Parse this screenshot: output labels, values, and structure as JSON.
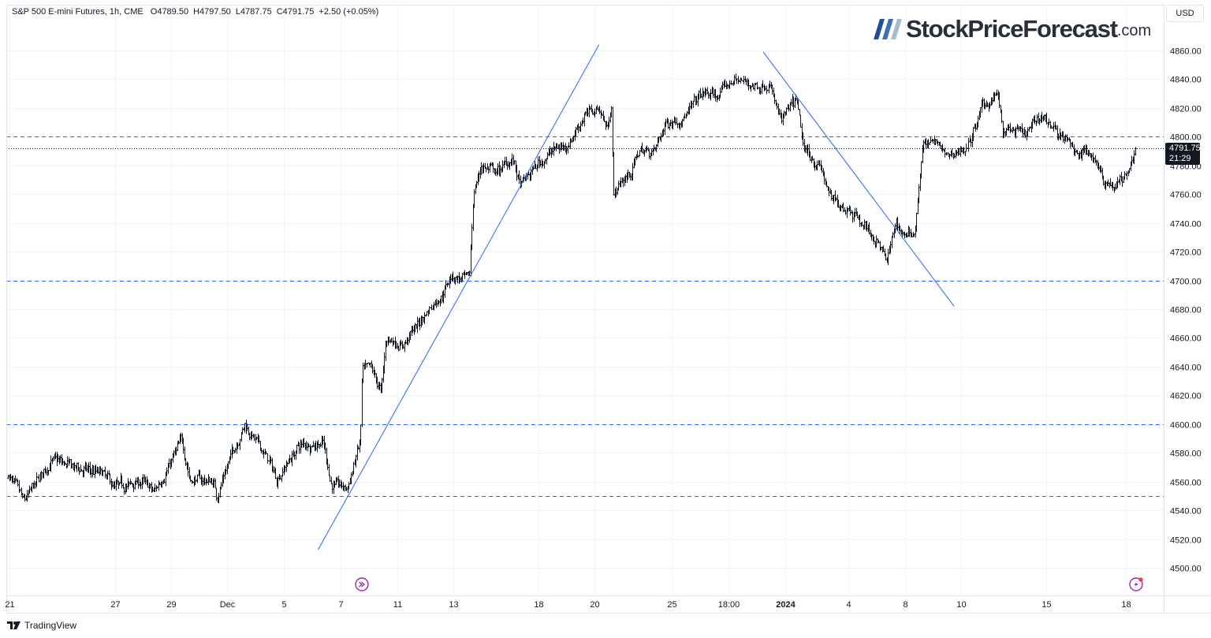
{
  "header": {
    "symbol": "S&P 500 E-mini Futures, 1h, CME",
    "open": "O4789.50",
    "high": "H4797.50",
    "low": "L4787.75",
    "close": "C4791.75",
    "change": "+2.50 (+0.05%)"
  },
  "currency_button": "USD",
  "logo": {
    "main": "StockPriceForecast",
    "domain": ".com",
    "stripe_colors": [
      "#1e4e9c",
      "#3d6fb8",
      "#a9bccf"
    ]
  },
  "footer": {
    "brand": "TradingView"
  },
  "price_badge": {
    "price": "4791.75",
    "countdown": "21:29"
  },
  "icons": {
    "goto_realtime": "arrow-circle-icon",
    "alert": "lightning-icon"
  },
  "colors": {
    "bars": "#131722",
    "levels": "#2962ff",
    "trendlines": "#2962ff",
    "grid": "#f0f3fa",
    "icon_purple": "#9c27b0",
    "dot_red": "#f23645"
  },
  "chart_data": {
    "type": "ohlc",
    "interval": "1h",
    "y_ticks": [
      "4860.00",
      "4840.00",
      "4820.00",
      "4800.00",
      "4780.00",
      "4760.00",
      "4740.00",
      "4720.00",
      "4700.00",
      "4680.00",
      "4660.00",
      "4640.00",
      "4620.00",
      "4600.00",
      "4580.00",
      "4560.00",
      "4540.00",
      "4520.00",
      "4500.00"
    ],
    "ylim": [
      4500,
      4860
    ],
    "x_ticks": [
      {
        "label": "21",
        "date": "2023-11-21 00:00"
      },
      {
        "label": "27",
        "date": "2023-11-27 00:00"
      },
      {
        "label": "29",
        "date": "2023-11-29 00:00"
      },
      {
        "label": "Dec",
        "date": "2023-12-01 00:00"
      },
      {
        "label": "5",
        "date": "2023-12-05 00:00"
      },
      {
        "label": "7",
        "date": "2023-12-07 00:00"
      },
      {
        "label": "11",
        "date": "2023-12-11 00:00"
      },
      {
        "label": "13",
        "date": "2023-12-13 00:00"
      },
      {
        "label": "18",
        "date": "2023-12-18 00:00"
      },
      {
        "label": "20",
        "date": "2023-12-20 00:00"
      },
      {
        "label": "25",
        "date": "2023-12-25 00:00"
      },
      {
        "label": "18:00",
        "date": "2023-12-27 18:00"
      },
      {
        "label": "2024",
        "date": "2024-01-02 00:00"
      },
      {
        "label": "4",
        "date": "2024-01-04 00:00"
      },
      {
        "label": "8",
        "date": "2024-01-08 00:00"
      },
      {
        "label": "10",
        "date": "2024-01-10 00:00"
      },
      {
        "label": "15",
        "date": "2024-01-15 00:00"
      },
      {
        "label": "18",
        "date": "2024-01-18 00:00"
      }
    ],
    "price_path": [
      [
        "2023-11-20 22:00",
        4565
      ],
      [
        "2023-11-21 19:00",
        4545
      ],
      [
        "2023-11-23 09:00",
        4575
      ],
      [
        "2023-11-24 12:00",
        4570
      ],
      [
        "2023-11-26 07:00",
        4565
      ],
      [
        "2023-11-26 23:00",
        4555
      ],
      [
        "2023-11-27 23:00",
        4560
      ],
      [
        "2023-11-28 09:00",
        4552
      ],
      [
        "2023-11-29 09:00",
        4588
      ],
      [
        "2023-11-29 16:00",
        4562
      ],
      [
        "2023-11-30 12:00",
        4560
      ],
      [
        "2023-11-30 15:00",
        4550
      ],
      [
        "2023-12-01 03:00",
        4575
      ],
      [
        "2023-12-02 05:00",
        4600
      ],
      [
        "2023-12-03 21:00",
        4575
      ],
      [
        "2023-12-04 11:00",
        4562
      ],
      [
        "2023-12-05 13:00",
        4585
      ],
      [
        "2023-12-06 09:00",
        4588
      ],
      [
        "2023-12-06 16:00",
        4558
      ],
      [
        "2023-12-07 11:00",
        4555
      ],
      [
        "2023-12-08 09:00",
        4588
      ],
      [
        "2023-12-08 12:00",
        4636
      ],
      [
        "2023-12-09 03:00",
        4638
      ],
      [
        "2023-12-09 20:00",
        4622
      ],
      [
        "2023-12-10 05:00",
        4660
      ],
      [
        "2023-12-11 04:00",
        4655
      ],
      [
        "2023-12-11 18:00",
        4670
      ],
      [
        "2023-12-12 07:00",
        4685
      ],
      [
        "2023-12-12 14:00",
        4690
      ],
      [
        "2023-12-12 21:00",
        4703
      ],
      [
        "2023-12-13 22:00",
        4700
      ],
      [
        "2023-12-14 04:00",
        4760
      ],
      [
        "2023-12-14 15:00",
        4780
      ],
      [
        "2023-12-15 13:00",
        4775
      ],
      [
        "2023-12-16 11:00",
        4785
      ],
      [
        "2023-12-16 22:00",
        4765
      ],
      [
        "2023-12-17 21:00",
        4780
      ],
      [
        "2023-12-18 11:00",
        4790
      ],
      [
        "2023-12-19 01:00",
        4795
      ],
      [
        "2023-12-19 15:00",
        4815
      ],
      [
        "2023-12-20 07:00",
        4820
      ],
      [
        "2023-12-20 20:00",
        4805
      ],
      [
        "2023-12-21 02:00",
        4825
      ],
      [
        "2023-12-21 05:00",
        4760
      ],
      [
        "2023-12-21 20:00",
        4770
      ],
      [
        "2023-12-22 08:00",
        4775
      ],
      [
        "2023-12-22 21:00",
        4790
      ],
      [
        "2023-12-23 21:00",
        4790
      ],
      [
        "2023-12-24 15:00",
        4810
      ],
      [
        "2023-12-25 17:00",
        4815
      ],
      [
        "2023-12-26 11:00",
        4830
      ],
      [
        "2023-12-27 05:00",
        4828
      ],
      [
        "2023-12-28 05:00",
        4840
      ],
      [
        "2023-12-30 09:00",
        4835
      ],
      [
        "2023-12-31 11:00",
        4838
      ],
      [
        "2024-01-01 14:00",
        4810
      ],
      [
        "2024-01-02 08:00",
        4825
      ],
      [
        "2024-01-02 14:00",
        4790
      ],
      [
        "2024-01-03 02:00",
        4780
      ],
      [
        "2024-01-03 11:00",
        4755
      ],
      [
        "2024-01-04 05:00",
        4750
      ],
      [
        "2024-01-05 08:00",
        4735
      ],
      [
        "2024-01-06 04:00",
        4725
      ],
      [
        "2024-01-06 17:00",
        4712
      ],
      [
        "2024-01-07 07:00",
        4740
      ],
      [
        "2024-01-08 01:00",
        4730
      ],
      [
        "2024-01-08 08:00",
        4735
      ],
      [
        "2024-01-08 15:00",
        4795
      ],
      [
        "2024-01-09 04:00",
        4795
      ],
      [
        "2024-01-09 11:00",
        4785
      ],
      [
        "2024-01-10 12:00",
        4795
      ],
      [
        "2024-01-11 05:00",
        4820
      ],
      [
        "2024-01-12 03:00",
        4830
      ],
      [
        "2024-01-12 11:00",
        4800
      ],
      [
        "2024-01-12 20:00",
        4805
      ],
      [
        "2024-01-13 18:00",
        4800
      ],
      [
        "2024-01-14 16:00",
        4815
      ],
      [
        "2024-01-15 09:00",
        4805
      ],
      [
        "2024-01-16 00:00",
        4790
      ],
      [
        "2024-01-16 10:00",
        4790
      ],
      [
        "2024-01-16 21:00",
        4785
      ],
      [
        "2024-01-17 04:00",
        4770
      ],
      [
        "2024-01-17 15:00",
        4765
      ],
      [
        "2024-01-18 01:00",
        4775
      ],
      [
        "2024-01-18 09:00",
        4791.75
      ]
    ],
    "horizontal_levels": [
      4800,
      4700,
      4600,
      4550
    ],
    "last_price": 4791.75,
    "trendlines": [
      {
        "from": [
          "2023-12-06 05:00",
          4512.6
        ],
        "to": [
          "2023-12-20 07:00",
          4864
        ]
      },
      {
        "from": [
          "2023-12-30 23:00",
          4859
        ],
        "to": [
          "2024-01-09 18:00",
          4682
        ]
      }
    ]
  }
}
